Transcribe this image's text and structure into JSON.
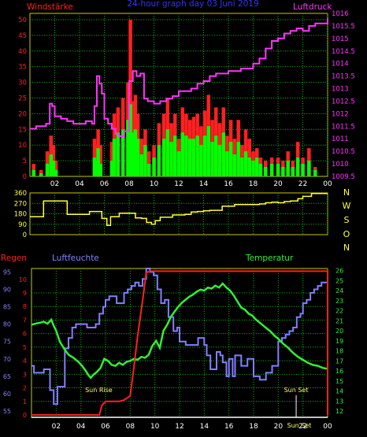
{
  "chart_data": [
    {
      "type": "line",
      "title": "24-hour graph day  03 Juni 2019",
      "ylabel_left": "Windstärke",
      "ylabel_right": "Luftdruck",
      "x_ticks": [
        "02",
        "04",
        "06",
        "08",
        "10",
        "12",
        "14",
        "16",
        "18",
        "20",
        "22",
        "00"
      ],
      "y_left_ticks": [
        0,
        5,
        10,
        15,
        20,
        25,
        30,
        35,
        40,
        45,
        50
      ],
      "y_right_ticks": [
        "1009.5",
        "1010",
        "1010.5",
        "1011",
        "1011.5",
        "1012",
        "1012.5",
        "1013",
        "1013.5",
        "1014",
        "1014.5",
        "1015",
        "1015.5",
        "1016"
      ],
      "ylim_left": [
        0,
        52
      ],
      "ylim_right": [
        1009.5,
        1016
      ],
      "xlim": [
        0,
        24
      ],
      "colors": {
        "pressure": "#ff33ff",
        "gust": "#ff2020",
        "wind": "#00ff00",
        "frame": "#c8c800"
      },
      "series": [
        {
          "key": "pressure",
          "x": [
            0,
            0.5,
            1,
            1.3,
            1.6,
            1.8,
            2,
            2.5,
            3,
            3.5,
            4,
            4.5,
            5,
            5.2,
            5.4,
            5.6,
            5.8,
            6,
            6.3,
            6.6,
            6.9,
            7.2,
            7.6,
            8,
            8.3,
            8.6,
            8.9,
            9.2,
            9.5,
            10,
            10.5,
            11,
            11.5,
            12,
            12.5,
            13,
            13.5,
            14,
            14.5,
            15,
            15.5,
            16,
            16.5,
            17,
            17.5,
            18,
            18.5,
            19,
            19.5,
            20,
            20.5,
            21,
            21.5,
            22,
            22.5,
            23,
            23.5,
            24
          ],
          "y": [
            1011.4,
            1011.5,
            1011.5,
            1011.6,
            1012.4,
            1012.3,
            1011.9,
            1011.8,
            1011.7,
            1011.6,
            1011.6,
            1011.7,
            1011.6,
            1012.3,
            1013.5,
            1013.2,
            1012.8,
            1011.8,
            1011.6,
            1011.4,
            1011.2,
            1011.1,
            1011.3,
            1013.3,
            1013.7,
            1013.5,
            1013.6,
            1012.6,
            1012.5,
            1012.4,
            1012.5,
            1012.6,
            1012.7,
            1012.9,
            1012.9,
            1013.0,
            1013.2,
            1013.3,
            1013.5,
            1013.6,
            1013.6,
            1013.7,
            1013.7,
            1013.8,
            1013.8,
            1014.0,
            1014.2,
            1014.6,
            1014.9,
            1015.0,
            1015.2,
            1015.3,
            1015.4,
            1015.3,
            1015.5,
            1015.6,
            1015.6,
            1015.8
          ]
        }
      ],
      "wind": {
        "x": [
          0.3,
          0.9,
          1.4,
          1.7,
          1.9,
          2.1,
          5.2,
          5.3,
          5.5,
          5.7,
          6.6,
          6.8,
          7.1,
          7.5,
          7.9,
          8.1,
          8.3,
          8.5,
          8.7,
          9.0,
          9.3,
          9.6,
          10.0,
          10.4,
          10.8,
          11.1,
          11.4,
          11.7,
          12.0,
          12.3,
          12.6,
          12.9,
          13.2,
          13.5,
          13.8,
          14.1,
          14.4,
          14.7,
          15.0,
          15.3,
          15.6,
          15.9,
          16.2,
          16.5,
          16.8,
          17.1,
          17.4,
          17.7,
          18.0,
          18.3,
          18.6,
          19.0,
          19.5,
          20.0,
          20.4,
          20.8,
          21.2,
          21.6,
          22.0,
          22.5,
          23.0
        ],
        "gust": [
          4,
          2,
          8,
          13,
          10,
          5,
          12,
          10,
          15,
          10,
          11,
          20,
          22,
          25,
          30,
          50,
          24,
          26,
          20,
          12,
          15,
          8,
          10,
          17,
          20,
          25,
          17,
          20,
          12,
          22,
          20,
          18,
          19,
          20,
          16,
          21,
          26,
          18,
          22,
          17,
          22,
          13,
          18,
          12,
          18,
          10,
          15,
          12,
          8,
          9,
          6,
          5,
          6,
          6,
          5,
          8,
          5,
          11,
          6,
          9,
          3
        ],
        "mean": [
          2,
          1,
          4,
          7,
          5,
          2,
          6,
          5,
          9,
          4,
          5,
          12,
          14,
          15,
          18,
          23,
          14,
          15,
          12,
          7,
          10,
          4,
          6,
          10,
          12,
          15,
          11,
          13,
          8,
          14,
          13,
          12,
          12,
          13,
          10,
          13,
          16,
          11,
          13,
          10,
          14,
          8,
          11,
          7,
          11,
          6,
          8,
          6,
          5,
          6,
          4,
          3,
          4,
          4,
          3,
          5,
          3,
          6,
          4,
          5,
          2
        ]
      }
    },
    {
      "type": "line",
      "ylabel_right": [
        "N",
        "W",
        "S",
        "O",
        "N"
      ],
      "y_ticks": [
        0,
        90,
        180,
        270,
        360
      ],
      "ylim": [
        0,
        360
      ],
      "xlim": [
        0,
        24
      ],
      "colors": {
        "direction": "#ffff33"
      },
      "series": [
        {
          "key": "direction",
          "x": [
            0,
            0.9,
            1.1,
            2.8,
            3.0,
            4.6,
            4.8,
            5.6,
            5.8,
            6.2,
            6.5,
            7.0,
            7.2,
            8.0,
            8.5,
            9.0,
            9.4,
            9.8,
            10.1,
            10.5,
            11.0,
            11.5,
            12.0,
            12.5,
            13.0,
            13.5,
            14.0,
            14.5,
            15.0,
            15.5,
            16.0,
            16.5,
            17.0,
            17.5,
            18.0,
            18.5,
            19.0,
            19.5,
            20.0,
            20.5,
            21.0,
            21.3,
            21.6,
            22.0,
            22.4,
            22.7,
            23.0,
            23.5,
            24.0
          ],
          "y": [
            155,
            155,
            290,
            290,
            175,
            175,
            200,
            200,
            140,
            80,
            155,
            155,
            185,
            185,
            145,
            140,
            105,
            90,
            120,
            150,
            150,
            170,
            170,
            175,
            195,
            200,
            205,
            210,
            210,
            245,
            245,
            260,
            260,
            260,
            260,
            265,
            275,
            280,
            275,
            285,
            290,
            290,
            310,
            330,
            330,
            355,
            355,
            355,
            355
          ]
        }
      ]
    },
    {
      "type": "line",
      "ylabel_left": "Regen",
      "ylabel_mid": "Luftfeuchte",
      "ylabel_right": "Temperatur",
      "x_ticks": [
        "02",
        "04",
        "06",
        "08",
        "10",
        "12",
        "14",
        "16",
        "18",
        "20",
        "22",
        "00"
      ],
      "y_rain_ticks": [
        0,
        1,
        2,
        3,
        4,
        5,
        6,
        7,
        8,
        9,
        10
      ],
      "y_hum_ticks": [
        55,
        60,
        65,
        70,
        75,
        80,
        85,
        90,
        95
      ],
      "y_temp_ticks": [
        12,
        13,
        14,
        15,
        16,
        17,
        18,
        19,
        20,
        21,
        22,
        23,
        24,
        25,
        26
      ],
      "ylim_rain": [
        0,
        10.8
      ],
      "ylim_hum": [
        55,
        96
      ],
      "ylim_temp": [
        12,
        26.2
      ],
      "xlim": [
        0,
        24
      ],
      "colors": {
        "rain": "#ff2020",
        "humidity": "#8080ff",
        "temperature": "#33ee33",
        "frame": "#c8c800"
      },
      "series": [
        {
          "key": "rain",
          "x": [
            0,
            5.5,
            5.7,
            6.0,
            6.6,
            7.1,
            7.5,
            8.0,
            8.3,
            8.6,
            9.0,
            9.3,
            9.6,
            24.0,
            24.0
          ],
          "y": [
            0,
            0,
            0.7,
            1.0,
            1.0,
            1.0,
            1.1,
            1.4,
            3.5,
            5.8,
            8.4,
            10.5,
            10.6,
            10.6,
            0
          ]
        },
        {
          "key": "humidity",
          "x": [
            0,
            0.2,
            1,
            1.2,
            1.5,
            1.8,
            2.1,
            2.3,
            2.7,
            3.0,
            3.3,
            3.6,
            4.0,
            4.5,
            5.0,
            5.2,
            5.5,
            5.8,
            6.0,
            6.3,
            6.6,
            6.9,
            7.2,
            7.5,
            7.8,
            8.1,
            8.4,
            8.7,
            9.0,
            9.3,
            9.6,
            9.9,
            10.2,
            10.5,
            10.8,
            11.1,
            11.5,
            11.8,
            12.0,
            12.5,
            13.0,
            13.5,
            14.0,
            14.2,
            14.5,
            14.8,
            15.0,
            15.3,
            15.5,
            15.8,
            16.0,
            16.3,
            16.5,
            17.0,
            17.5,
            18.0,
            18.5,
            19.0,
            19.5,
            20.0,
            20.3,
            20.6,
            20.9,
            21.2,
            21.5,
            21.8,
            22.0,
            22.3,
            22.6,
            22.9,
            23.2,
            23.5,
            23.8,
            24.0
          ],
          "y": [
            68,
            66,
            67,
            67,
            61,
            57,
            62,
            62,
            73,
            76,
            79,
            80,
            80,
            79,
            79,
            80,
            83,
            85,
            87,
            88,
            88,
            86,
            86,
            89,
            90,
            91,
            92,
            91,
            93,
            96,
            95,
            94,
            90,
            86,
            87,
            82,
            78,
            79,
            75,
            74,
            74,
            76,
            74,
            71,
            67,
            67,
            72,
            71,
            69,
            65,
            70,
            65,
            71,
            68,
            70,
            65,
            64,
            66,
            68,
            75,
            76,
            77,
            78,
            79,
            82,
            83,
            86,
            87,
            89,
            90,
            91,
            92,
            92,
            92
          ]
        },
        {
          "key": "temperature",
          "x": [
            0,
            0.3,
            0.7,
            1.0,
            1.3,
            1.6,
            1.8,
            2.0,
            2.3,
            2.6,
            3.0,
            3.4,
            3.8,
            4.1,
            4.4,
            4.6,
            4.8,
            5.0,
            5.3,
            5.6,
            5.9,
            6.2,
            6.5,
            6.8,
            7.1,
            7.4,
            7.7,
            8.0,
            8.3,
            8.6,
            8.9,
            9.2,
            9.5,
            9.8,
            10.1,
            10.4,
            10.7,
            11.0,
            11.3,
            11.6,
            11.9,
            12.2,
            12.5,
            12.8,
            13.1,
            13.4,
            13.7,
            14.0,
            14.3,
            14.6,
            14.9,
            15.2,
            15.5,
            15.8,
            16.1,
            16.4,
            16.7,
            17.0,
            17.3,
            17.6,
            17.9,
            18.2,
            18.5,
            18.8,
            19.1,
            19.4,
            19.7,
            20.0,
            20.4,
            20.8,
            21.2,
            21.6,
            22.0,
            22.4,
            22.8,
            23.2,
            23.6,
            24.0
          ],
          "y": [
            20.6,
            20.7,
            20.8,
            20.9,
            20.7,
            21.1,
            20.5,
            20.0,
            18.9,
            18.3,
            17.6,
            17.3,
            16.9,
            16.5,
            16.0,
            15.6,
            15.3,
            15.6,
            15.9,
            16.3,
            17.2,
            17.0,
            16.6,
            16.5,
            16.8,
            16.6,
            16.9,
            17.0,
            17.2,
            17.1,
            17.4,
            17.3,
            17.6,
            18.5,
            19.0,
            18.3,
            20.0,
            20.6,
            21.4,
            21.9,
            22.4,
            22.8,
            23.1,
            23.4,
            23.6,
            23.9,
            24.1,
            24.0,
            24.3,
            24.2,
            24.5,
            24.3,
            24.7,
            24.3,
            24.0,
            23.5,
            22.9,
            22.3,
            22.1,
            21.7,
            21.5,
            21.1,
            20.8,
            20.5,
            20.2,
            19.9,
            19.5,
            19.2,
            18.7,
            18.3,
            17.8,
            17.4,
            17.1,
            16.8,
            16.6,
            16.5,
            16.3,
            16.2
          ]
        }
      ],
      "annotations": [
        {
          "text": "Sun Rise",
          "x": 5.45
        },
        {
          "text": "Sun Set",
          "x": 21.45
        },
        {
          "text": "Sun Set",
          "x": 21.7
        }
      ]
    }
  ]
}
